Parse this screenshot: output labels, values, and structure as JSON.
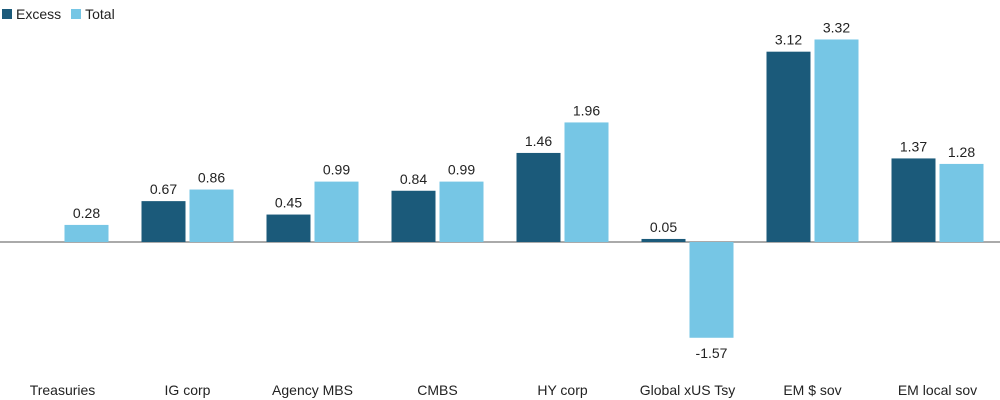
{
  "chart_data": {
    "type": "bar",
    "title": "",
    "xlabel": "",
    "ylabel": "",
    "categories": [
      "Treasuries",
      "IG corp",
      "Agency MBS",
      "CMBS",
      "HY corp",
      "Global xUS Tsy",
      "EM $ sov",
      "EM local sov"
    ],
    "series": [
      {
        "name": "Excess",
        "color": "#1b5a7a",
        "values": [
          null,
          0.67,
          0.45,
          0.84,
          1.46,
          0.05,
          3.12,
          1.37
        ]
      },
      {
        "name": "Total",
        "color": "#76c6e5",
        "values": [
          0.28,
          0.86,
          0.99,
          0.99,
          1.96,
          -1.57,
          3.32,
          1.28
        ]
      }
    ],
    "ylim": [
      -2.1,
      3.6
    ],
    "grid": false,
    "legend_position": "top-left"
  }
}
